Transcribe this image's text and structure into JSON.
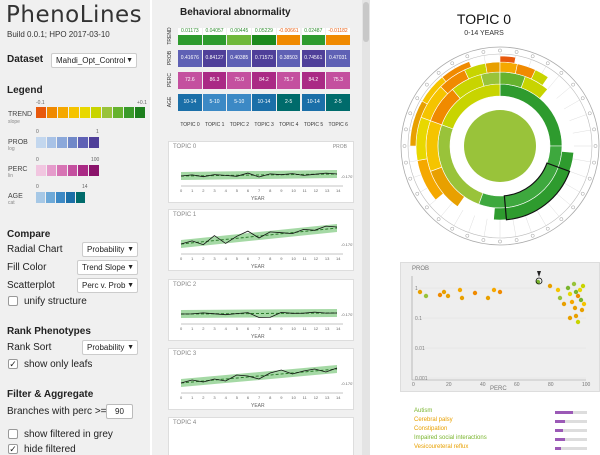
{
  "app": {
    "title": "PhenoLines",
    "build": "Build 0.0.1; HPO 2017-03-10"
  },
  "dataset": {
    "label": "Dataset",
    "value": "Mahdi_Opt_Control"
  },
  "legend": {
    "title": "Legend",
    "trend": {
      "label": "TREND",
      "sub": "slope",
      "min": "-0.1",
      "max": "+0.1",
      "colors": [
        "#e8590c",
        "#f08a00",
        "#f5a800",
        "#f5c400",
        "#e8d800",
        "#c8d400",
        "#99c33a",
        "#66b32e",
        "#3a9a2a",
        "#1d7f1d"
      ]
    },
    "prob": {
      "label": "PROB",
      "sub": "log",
      "min": "0",
      "max": "1",
      "colors": [
        "#c3d7ee",
        "#a8c2e6",
        "#8ba8da",
        "#7088c8",
        "#5f61b5",
        "#4f3f99"
      ]
    },
    "perc": {
      "label": "PERC",
      "sub": "lin",
      "min": "0",
      "max": "100",
      "colors": [
        "#f1c6e0",
        "#e59bcb",
        "#d774b4",
        "#c4509f",
        "#aa2a85",
        "#8a136a"
      ]
    },
    "age": {
      "label": "AGE",
      "sub": "cat",
      "min": "0",
      "max": "14",
      "colors": [
        "#a6c8e6",
        "#6da9d8",
        "#3c89c5",
        "#1b6fa8",
        "#006b6b"
      ]
    }
  },
  "compare": {
    "title": "Compare",
    "radial_label": "Radial Chart",
    "radial_value": "Probability",
    "fill_label": "Fill Color",
    "fill_value": "Trend Slope",
    "scatter_label": "Scatterplot",
    "scatter_value": "Perc v. Prob",
    "unify_label": "unify structure"
  },
  "rank": {
    "title": "Rank Phenotypes",
    "sort_label": "Rank Sort",
    "sort_value": "Probability",
    "leafs_label": "show only leafs"
  },
  "filter": {
    "title": "Filter & Aggregate",
    "branches_label": "Branches with perc >=",
    "branches_value": "90",
    "grey_label": "show filtered in grey",
    "hide_label": "hide filtered"
  },
  "heatmap": {
    "title": "Behavioral abnormality",
    "rows": [
      "TREND",
      "PROB",
      "PERC",
      "AGE"
    ],
    "topics": [
      "TOPIC 0",
      "TOPIC 1",
      "TOPIC 2",
      "TOPIC 3",
      "TOPIC 4",
      "TOPIC 5",
      "TOPIC 6"
    ],
    "trend": {
      "values": [
        "0.01173",
        "0.04057",
        "0.00445",
        "0.05229",
        "-0.00661",
        "0.02487",
        "-0.01182"
      ],
      "colors": [
        "#2e9b2e",
        "#2e9b2e",
        "#6fb83a",
        "#1d8a1d",
        "#f08a00",
        "#2e9b2e",
        "#f08a00"
      ]
    },
    "prob": {
      "values": [
        "0.41676",
        "0.84127",
        "0.40385",
        "0.71573",
        "0.38503",
        "0.74561",
        "0.47031"
      ],
      "colors": [
        "#5f61b5",
        "#4f3f99",
        "#5f61b5",
        "#4f3f99",
        "#5f61b5",
        "#4f3f99",
        "#5f61b5"
      ]
    },
    "perc": {
      "values": [
        "72.6",
        "86.3",
        "75.0",
        "84.2",
        "75.7",
        "84.2",
        "75.3"
      ],
      "colors": [
        "#c4509f",
        "#aa2a85",
        "#c4509f",
        "#aa2a85",
        "#c4509f",
        "#aa2a85",
        "#c4509f"
      ]
    },
    "age": {
      "values": [
        "10-14",
        "5-10",
        "5-10",
        "10-14",
        "2-5",
        "10-14",
        "2-5"
      ],
      "colors": [
        "#1b6fa8",
        "#3c89c5",
        "#3c89c5",
        "#1b6fa8",
        "#006b6b",
        "#1b6fa8",
        "#006b6b"
      ]
    }
  },
  "cards": [
    {
      "title": "TOPIC 0",
      "prob": "PROB",
      "ytick": "-0.1707",
      "year": "YEAR"
    },
    {
      "title": "TOPIC 1",
      "ytick": "-0.1707",
      "year": "YEAR"
    },
    {
      "title": "TOPIC 2",
      "ytick": "-0.1707",
      "year": "YEAR"
    },
    {
      "title": "TOPIC 3",
      "ytick": "-0.1707",
      "year": "YEAR"
    },
    {
      "title": "TOPIC 4"
    }
  ],
  "xticks": [
    "0",
    "1",
    "2",
    "3",
    "4",
    "5",
    "6",
    "7",
    "8",
    "9",
    "10",
    "11",
    "12",
    "13",
    "14"
  ],
  "topic": {
    "title": "TOPIC 0",
    "subtitle": "0-14 YEARS"
  },
  "scatter": {
    "ylabel": "PROB",
    "xlabel": "PERC",
    "yticks": [
      "1",
      "0.1",
      "0.01",
      "0.001"
    ],
    "xticks": [
      "0",
      "20",
      "40",
      "60",
      "80",
      "100"
    ]
  },
  "phenotypes": [
    {
      "name": "Autism",
      "color": "#7ab52e",
      "value": 0.55
    },
    {
      "name": "Cerebral palsy",
      "color": "#e8a000",
      "value": 0.3
    },
    {
      "name": "Constipation",
      "color": "#e8a000",
      "value": 0.25
    },
    {
      "name": "Impaired social interactions",
      "color": "#7ab52e",
      "value": 0.3
    },
    {
      "name": "Vesicoureteral reflux",
      "color": "#e8a000",
      "value": 0.2
    }
  ]
}
